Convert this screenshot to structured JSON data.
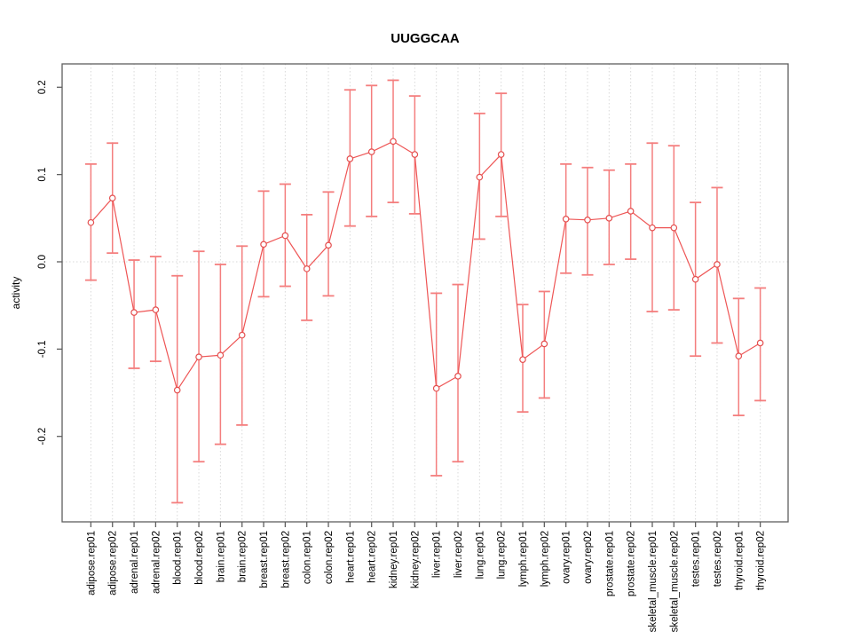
{
  "title": "UUGGCAA",
  "axes": {
    "y_label": "activity"
  },
  "chart_data": {
    "type": "line",
    "title": "UUGGCAA",
    "xlabel": "",
    "ylabel": "activity",
    "legend": "none",
    "grid": "vertical dotted gridline per category; dotted horizontal line at y=0",
    "ylim": [
      -0.298,
      0.227
    ],
    "yticks": [
      0.2,
      0.1,
      0.0,
      -0.1,
      -0.2
    ],
    "ytick_labels": [
      "0.2",
      "0.1",
      "0.0",
      "-0.1",
      "-0.2"
    ],
    "marker": "open-circle",
    "error_bars": true,
    "categories": [
      "adipose.rep01",
      "adipose.rep02",
      "adrenal.rep01",
      "adrenal.rep02",
      "blood.rep01",
      "blood.rep02",
      "brain.rep01",
      "brain.rep02",
      "breast.rep01",
      "breast.rep02",
      "colon.rep01",
      "colon.rep02",
      "heart.rep01",
      "heart.rep02",
      "kidney.rep01",
      "kidney.rep02",
      "liver.rep01",
      "liver.rep02",
      "lung.rep01",
      "lung.rep02",
      "lymph.rep01",
      "lymph.rep02",
      "ovary.rep01",
      "ovary.rep02",
      "prostate.rep01",
      "prostate.rep02",
      "skeletal_muscle.rep01",
      "skeletal_muscle.rep02",
      "testes.rep01",
      "testes.rep02",
      "thyroid.rep01",
      "thyroid.rep02"
    ],
    "values": [
      0.045,
      0.073,
      -0.058,
      -0.055,
      -0.147,
      -0.109,
      -0.107,
      -0.084,
      0.02,
      0.03,
      -0.008,
      0.019,
      0.118,
      0.126,
      0.138,
      0.123,
      -0.145,
      -0.131,
      0.097,
      0.123,
      -0.112,
      -0.094,
      0.049,
      0.048,
      0.05,
      0.058,
      0.039,
      0.039,
      -0.02,
      -0.003,
      -0.108,
      -0.093
    ],
    "upper": [
      0.112,
      0.136,
      0.002,
      0.006,
      -0.016,
      0.012,
      -0.003,
      0.018,
      0.081,
      0.089,
      0.054,
      0.08,
      0.197,
      0.202,
      0.208,
      0.19,
      -0.036,
      -0.026,
      0.17,
      0.193,
      -0.049,
      -0.034,
      0.112,
      0.108,
      0.105,
      0.112,
      0.136,
      0.133,
      0.068,
      0.085,
      -0.042,
      -0.03
    ],
    "lower": [
      -0.021,
      0.01,
      -0.122,
      -0.114,
      -0.276,
      -0.229,
      -0.209,
      -0.187,
      -0.04,
      -0.028,
      -0.067,
      -0.039,
      0.041,
      0.052,
      0.068,
      0.055,
      -0.245,
      -0.229,
      0.026,
      0.052,
      -0.172,
      -0.156,
      -0.013,
      -0.015,
      -0.003,
      0.003,
      -0.057,
      -0.055,
      -0.108,
      -0.093,
      -0.176,
      -0.159
    ],
    "colors": {
      "point_stroke": "#e44f4f",
      "series_line": "#ee5555",
      "error_bar": "#f47e7e",
      "grid": "#d9d9d9",
      "axis": "#5f5f5f",
      "text": "#000000",
      "background": "#ffffff"
    }
  }
}
